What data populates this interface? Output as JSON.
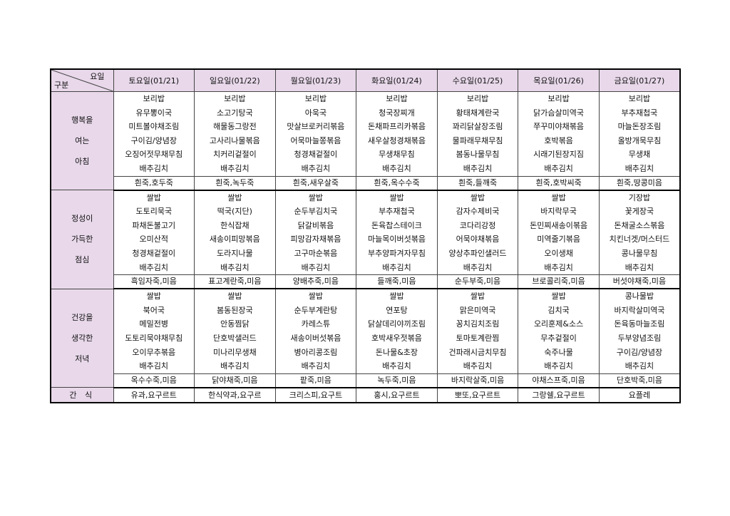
{
  "header": {
    "corner_top": "요일",
    "corner_bottom": "구분",
    "days": [
      "토요일(01/21)",
      "일요일(01/22)",
      "월요일(01/23)",
      "화요일(01/24)",
      "수요일(01/25)",
      "목요일(01/26)",
      "금요일(01/27)"
    ]
  },
  "sections": [
    {
      "label": [
        "행복을",
        "여는",
        "아침"
      ],
      "items": [
        [
          "보리밥",
          "유무뽕이국",
          "미트볼야채조림",
          "구이김/양념장",
          "오징어젓무채무침",
          "배추김치"
        ],
        [
          "보리밥",
          "소고기탕국",
          "해물동그랑전",
          "고사리나물볶음",
          "치커리겉절이",
          "배추김치"
        ],
        [
          "보리밥",
          "아욱국",
          "맛살브로커리볶음",
          "어묵마늘쫑볶음",
          "청경채겉절이",
          "배추김치"
        ],
        [
          "보리밥",
          "청국장찌개",
          "돈채파프리카볶음",
          "새우살청경채볶음",
          "무생채무침",
          "배추김치"
        ],
        [
          "보리밥",
          "황태채계란국",
          "꽈리닭살장조림",
          "물파래무채무침",
          "봄동나물무침",
          "배추김치"
        ],
        [
          "보리밥",
          "닭가슴살미역국",
          "쭈꾸미야채볶음",
          "호박볶음",
          "시래기된장지짐",
          "배추김치"
        ],
        [
          "보리밥",
          "부추재첩국",
          "마늘돈장조림",
          "올방개묵무침",
          "무생채",
          "배추김치"
        ]
      ],
      "porridge": [
        "흰죽,호두죽",
        "흰죽,녹두죽",
        "흰죽,새우살죽",
        "흰죽,옥수수죽",
        "흰죽,들깨죽",
        "흰죽,호박씨죽",
        "흰죽,땅콩미음"
      ]
    },
    {
      "label": [
        "정성이",
        "가득한",
        "점심"
      ],
      "items": [
        [
          "쌀밥",
          "도토리묵국",
          "파채돈불고기",
          "오미산적",
          "청경채겉절이",
          "배추김치"
        ],
        [
          "쌀밥",
          "떡국(지단)",
          "한식잡채",
          "새송이피망볶음",
          "도라지나물",
          "배추김치"
        ],
        [
          "쌀밥",
          "순두부김치국",
          "닭갈비볶음",
          "피망감자채볶음",
          "고구마순볶음",
          "배추김치"
        ],
        [
          "쌀밥",
          "부추재첩국",
          "돈육찹스테이크",
          "마늘목이버섯볶음",
          "부추양파겨자무침",
          "배추김치"
        ],
        [
          "쌀밥",
          "감자수제비국",
          "코다리강정",
          "어묵야채볶음",
          "양상추파인샐러드",
          "배추김치"
        ],
        [
          "쌀밥",
          "바지락무국",
          "돈민찌새송이볶음",
          "미역줄기볶음",
          "오이생채",
          "배추김치"
        ],
        [
          "기장밥",
          "꽃게장국",
          "돈채굴소스볶음",
          "치킨너겟/머스터드",
          "콩나물무침",
          "배추김치"
        ]
      ],
      "porridge": [
        "흑임자죽,미음",
        "표고계란죽,미음",
        "양배추죽,미음",
        "들깨죽,미음",
        "순두부죽,미음",
        "브로콜리죽,미음",
        "버섯야채죽,미음"
      ]
    },
    {
      "label": [
        "건강을",
        "생각한",
        "저녁"
      ],
      "items": [
        [
          "쌀밥",
          "북어국",
          "메밀전병",
          "도토리묵야채무침",
          "오이무추볶음",
          "배추김치"
        ],
        [
          "쌀밥",
          "봄동된장국",
          "안동찜닭",
          "단호박샐러드",
          "미나리무생채",
          "배추김치"
        ],
        [
          "쌀밥",
          "순두부계란탕",
          "카레스튜",
          "새송이버섯볶음",
          "병아리콩조림",
          "배추김치"
        ],
        [
          "쌀밥",
          "연포탕",
          "닭살데리야끼조림",
          "호박새우젓볶음",
          "돈나물&초장",
          "배추김치"
        ],
        [
          "쌀밥",
          "맑은미역국",
          "꽁치김치조림",
          "토마토계란찜",
          "건파래시금치무침",
          "배추김치"
        ],
        [
          "쌀밥",
          "김치국",
          "오리훈제&소스",
          "무추겉절이",
          "숙주나물",
          "배추김치"
        ],
        [
          "콩나물밥",
          "바지락살미역국",
          "돈육동마늘조림",
          "두부양념조림",
          "구이김/양념장",
          "배추김치"
        ]
      ],
      "porridge": [
        "옥수수죽,미음",
        "닭야채죽,미음",
        "팥죽,미음",
        "녹두죽,미음",
        "바지락살죽,미음",
        "야채스프죽,미음",
        "단호박죽,미음"
      ]
    }
  ],
  "snack": {
    "label": "간 식",
    "items": [
      "유과,요구르트",
      "한식약과,요구르",
      "크리스피,요구트",
      "홍시,요구르트",
      "뽀또,요구르트",
      "그랑쉘,요구르트",
      "요플레"
    ]
  },
  "colors": {
    "header_bg": "#e8d8ea",
    "label_bg": "#e8d8ea"
  }
}
